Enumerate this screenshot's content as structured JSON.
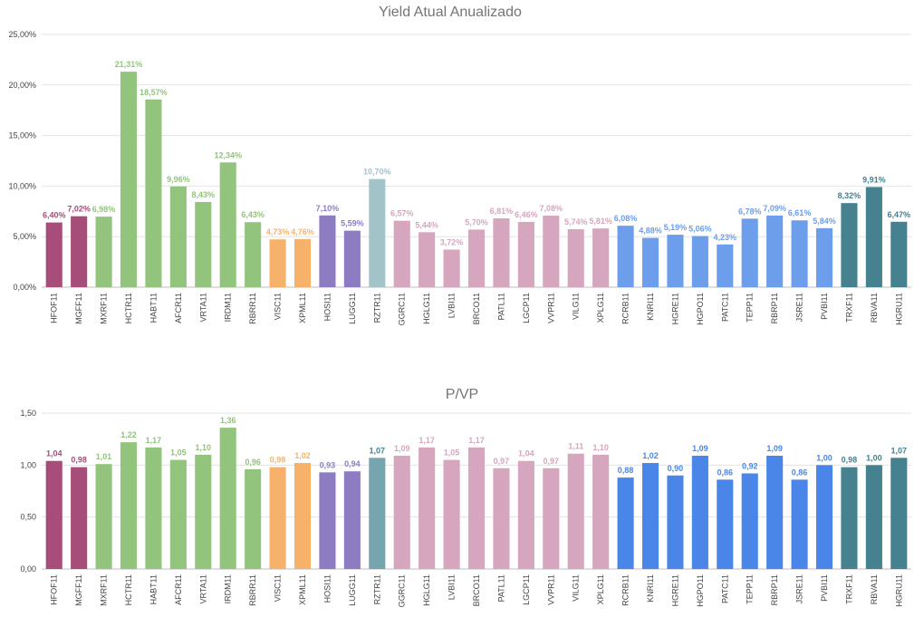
{
  "chart_data": [
    {
      "type": "bar",
      "title": "Yield Atual Anualizado",
      "ylim": [
        0,
        25
      ],
      "yticks": [
        "0,00%",
        "5,00%",
        "10,00%",
        "15,00%",
        "20,00%",
        "25,00%"
      ],
      "grid": true,
      "categories": [
        "HFOF11",
        "MGFF11",
        "MXRF11",
        "HCTR11",
        "HABT11",
        "AFCR11",
        "VRTA11",
        "IRDM11",
        "RBRR11",
        "VISC11",
        "XPML11",
        "HOSI11",
        "LUGG11",
        "RZTR11",
        "GGRC11",
        "HGLG11",
        "LVBI11",
        "BRCO11",
        "PATL11",
        "LGCP11",
        "VVPR11",
        "VILG11",
        "XPLG11",
        "RCRB11",
        "KNRI11",
        "HGRE11",
        "HGPO11",
        "PATC11",
        "TEPP11",
        "RBRP11",
        "JSRE11",
        "PVBI11",
        "TRXF11",
        "RBVA11",
        "HGRU11"
      ],
      "values": [
        6.4,
        7.02,
        6.98,
        21.31,
        18.57,
        9.96,
        8.43,
        12.34,
        6.43,
        4.73,
        4.76,
        7.1,
        5.59,
        10.7,
        6.57,
        5.44,
        3.72,
        5.7,
        6.81,
        6.46,
        7.08,
        5.74,
        5.81,
        6.08,
        4.88,
        5.19,
        5.06,
        4.23,
        6.78,
        7.09,
        6.61,
        5.84,
        8.32,
        9.91,
        6.47
      ],
      "labels": [
        "6,40%",
        "7,02%",
        "6,98%",
        "21,31%",
        "18,57%",
        "9,96%",
        "8,43%",
        "12,34%",
        "6,43%",
        "4,73%",
        "4,76%",
        "7,10%",
        "5,59%",
        "10,70%",
        "6,57%",
        "5,44%",
        "3,72%",
        "5,70%",
        "6,81%",
        "6,46%",
        "7,08%",
        "5,74%",
        "5,81%",
        "6,08%",
        "4,88%",
        "5,19%",
        "5,06%",
        "4,23%",
        "6,78%",
        "7,09%",
        "6,61%",
        "5,84%",
        "8,32%",
        "9,91%",
        "6,47%"
      ],
      "bar_colors": [
        "#a64d79",
        "#a64d79",
        "#93c47d",
        "#93c47d",
        "#93c47d",
        "#93c47d",
        "#93c47d",
        "#93c47d",
        "#93c47d",
        "#f6b26b",
        "#f6b26b",
        "#8e7cc3",
        "#8e7cc3",
        "#a2c4c9",
        "#d5a6bd",
        "#d5a6bd",
        "#d5a6bd",
        "#d5a6bd",
        "#d5a6bd",
        "#d5a6bd",
        "#d5a6bd",
        "#d5a6bd",
        "#d5a6bd",
        "#6d9eeb",
        "#6d9eeb",
        "#6d9eeb",
        "#6d9eeb",
        "#6d9eeb",
        "#6d9eeb",
        "#6d9eeb",
        "#6d9eeb",
        "#6d9eeb",
        "#45818e",
        "#45818e",
        "#45818e"
      ],
      "label_colors": [
        "#a64d79",
        "#a64d79",
        "#93c47d",
        "#93c47d",
        "#93c47d",
        "#93c47d",
        "#93c47d",
        "#93c47d",
        "#93c47d",
        "#f6b26b",
        "#f6b26b",
        "#8e7cc3",
        "#8e7cc3",
        "#a2c4c9",
        "#d5a6bd",
        "#d5a6bd",
        "#d5a6bd",
        "#d5a6bd",
        "#d5a6bd",
        "#d5a6bd",
        "#d5a6bd",
        "#d5a6bd",
        "#d5a6bd",
        "#6d9eeb",
        "#6d9eeb",
        "#6d9eeb",
        "#6d9eeb",
        "#6d9eeb",
        "#6d9eeb",
        "#6d9eeb",
        "#6d9eeb",
        "#6d9eeb",
        "#45818e",
        "#45818e",
        "#45818e"
      ]
    },
    {
      "type": "bar",
      "title": "P/VP",
      "ylim": [
        0,
        1.5
      ],
      "yticks": [
        "0,00",
        "0,50",
        "1,00",
        "1,50"
      ],
      "grid": true,
      "categories": [
        "HFOF11",
        "MGFF11",
        "MXRF11",
        "HCTR11",
        "HABT11",
        "AFCR11",
        "VRTA11",
        "IRDM11",
        "RBRR11",
        "VISC11",
        "XPML11",
        "HOSI11",
        "LUGG11",
        "RZTR11",
        "GGRC11",
        "HGLG11",
        "LVBI11",
        "BRCO11",
        "PATL11",
        "LGCP11",
        "VVPR11",
        "VILG11",
        "XPLG11",
        "RCRB11",
        "KNRI11",
        "HGRE11",
        "HGPO11",
        "PATC11",
        "TEPP11",
        "RBRP11",
        "JSRE11",
        "PVBI11",
        "TRXF11",
        "RBVA11",
        "HGRU11"
      ],
      "values": [
        1.04,
        0.98,
        1.01,
        1.22,
        1.17,
        1.05,
        1.1,
        1.36,
        0.96,
        0.98,
        1.02,
        0.93,
        0.94,
        1.07,
        1.09,
        1.17,
        1.05,
        1.17,
        0.97,
        1.04,
        0.97,
        1.11,
        1.1,
        0.88,
        1.02,
        0.9,
        1.09,
        0.86,
        0.92,
        1.09,
        0.86,
        1.0,
        0.98,
        1.0,
        1.07
      ],
      "labels": [
        "1,04",
        "0,98",
        "1,01",
        "1,22",
        "1,17",
        "1,05",
        "1,10",
        "1,36",
        "0,96",
        "0,98",
        "1,02",
        "0,93",
        "0,94",
        "1,07",
        "1,09",
        "1,17",
        "1,05",
        "1,17",
        "0,97",
        "1,04",
        "0,97",
        "1,11",
        "1,10",
        "0,88",
        "1,02",
        "0,90",
        "1,09",
        "0,86",
        "0,92",
        "1,09",
        "0,86",
        "1,00",
        "0,98",
        "1,00",
        "1,07"
      ],
      "bar_colors": [
        "#a64d79",
        "#a64d79",
        "#93c47d",
        "#93c47d",
        "#93c47d",
        "#93c47d",
        "#93c47d",
        "#93c47d",
        "#93c47d",
        "#f6b26b",
        "#f6b26b",
        "#8e7cc3",
        "#8e7cc3",
        "#76a5af",
        "#d5a6bd",
        "#d5a6bd",
        "#d5a6bd",
        "#d5a6bd",
        "#d5a6bd",
        "#d5a6bd",
        "#d5a6bd",
        "#d5a6bd",
        "#d5a6bd",
        "#4a86e8",
        "#4a86e8",
        "#4a86e8",
        "#4a86e8",
        "#4a86e8",
        "#4a86e8",
        "#4a86e8",
        "#4a86e8",
        "#4a86e8",
        "#45818e",
        "#45818e",
        "#45818e"
      ],
      "label_colors": [
        "#a64d79",
        "#a64d79",
        "#93c47d",
        "#93c47d",
        "#93c47d",
        "#93c47d",
        "#93c47d",
        "#93c47d",
        "#93c47d",
        "#f6b26b",
        "#f6b26b",
        "#8e7cc3",
        "#8e7cc3",
        "#45818e",
        "#d5a6bd",
        "#d5a6bd",
        "#d5a6bd",
        "#d5a6bd",
        "#d5a6bd",
        "#d5a6bd",
        "#d5a6bd",
        "#d5a6bd",
        "#d5a6bd",
        "#4a86e8",
        "#4a86e8",
        "#4a86e8",
        "#4a86e8",
        "#4a86e8",
        "#4a86e8",
        "#4a86e8",
        "#4a86e8",
        "#4a86e8",
        "#45818e",
        "#45818e",
        "#45818e"
      ]
    }
  ]
}
